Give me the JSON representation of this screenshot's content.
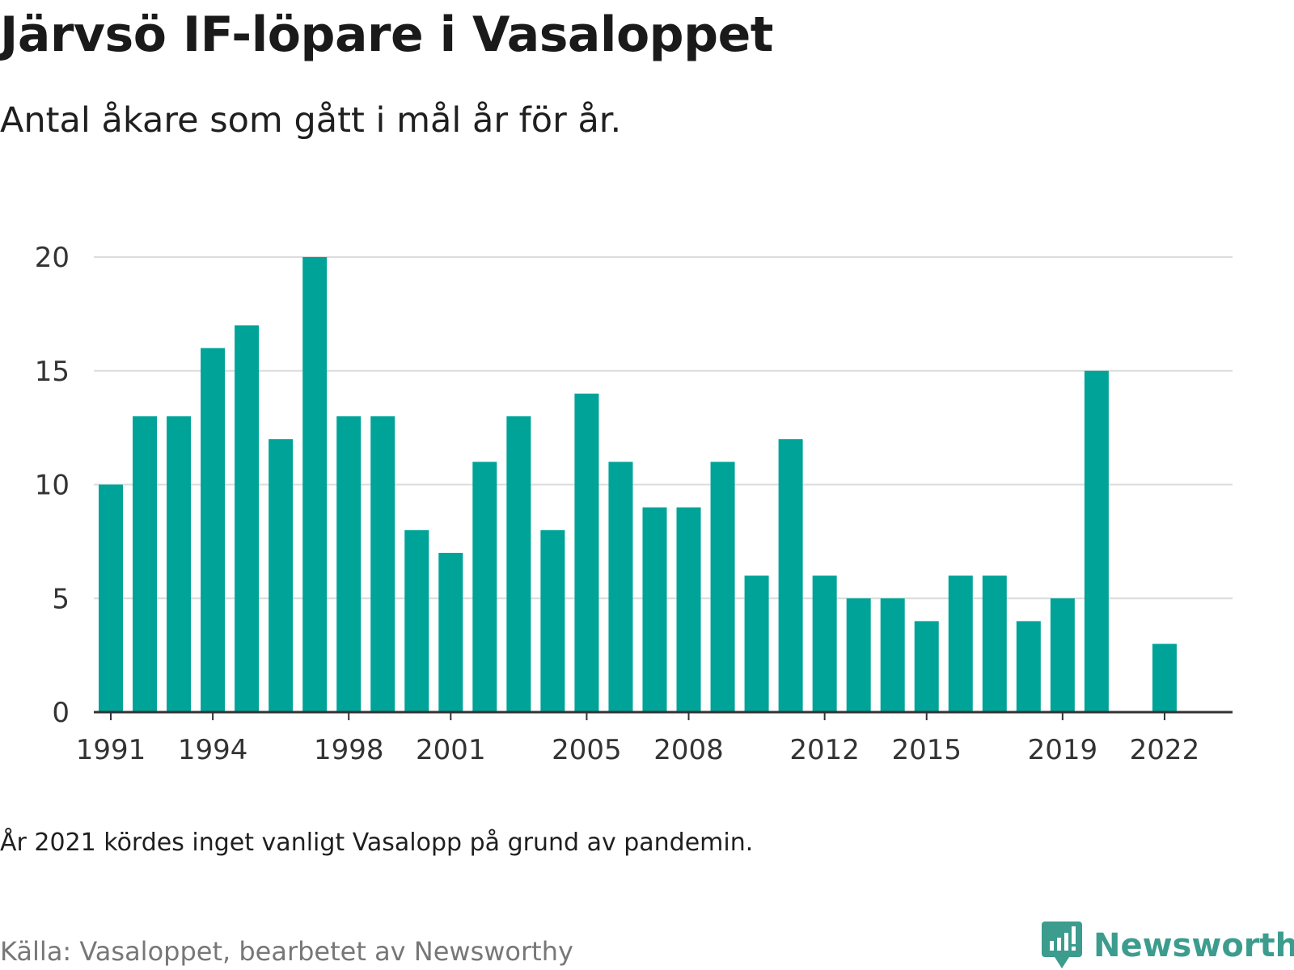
{
  "title": "Järvsö IF-löpare i Vasaloppet",
  "subtitle": "Antal åkare som gått i mål år för år.",
  "note": "År 2021 kördes inget vanligt Vasalopp på grund av pandemin.",
  "source": "Källa: Vasaloppet, bearbetet av Newsworthy",
  "brand": {
    "name": "Newsworthy",
    "color": "#3c9c8e",
    "icon": "newsworthy-logo-icon"
  },
  "chart_data": {
    "type": "bar",
    "title": "Järvsö IF-löpare i Vasaloppet",
    "subtitle": "Antal åkare som gått i mål år för år.",
    "x": [
      1991,
      1992,
      1993,
      1994,
      1995,
      1996,
      1997,
      1998,
      1999,
      2000,
      2001,
      2002,
      2003,
      2004,
      2005,
      2006,
      2007,
      2008,
      2009,
      2010,
      2011,
      2012,
      2013,
      2014,
      2015,
      2016,
      2017,
      2018,
      2019,
      2020,
      2022
    ],
    "values": [
      10,
      13,
      13,
      16,
      17,
      12,
      20,
      13,
      13,
      8,
      7,
      11,
      13,
      8,
      14,
      11,
      9,
      9,
      11,
      6,
      12,
      6,
      5,
      5,
      4,
      6,
      6,
      4,
      5,
      15,
      3
    ],
    "xticks": [
      "1991",
      "1994",
      "1998",
      "2001",
      "2005",
      "2008",
      "2012",
      "2015",
      "2019",
      "2022"
    ],
    "yticks": [
      "0",
      "5",
      "10",
      "15",
      "20"
    ],
    "ylim": [
      0,
      20
    ],
    "xlim": [
      1990.5,
      2024
    ],
    "xlabel": "",
    "ylabel": "",
    "grid": true,
    "legend": "none",
    "bar_color": "#00a398"
  }
}
